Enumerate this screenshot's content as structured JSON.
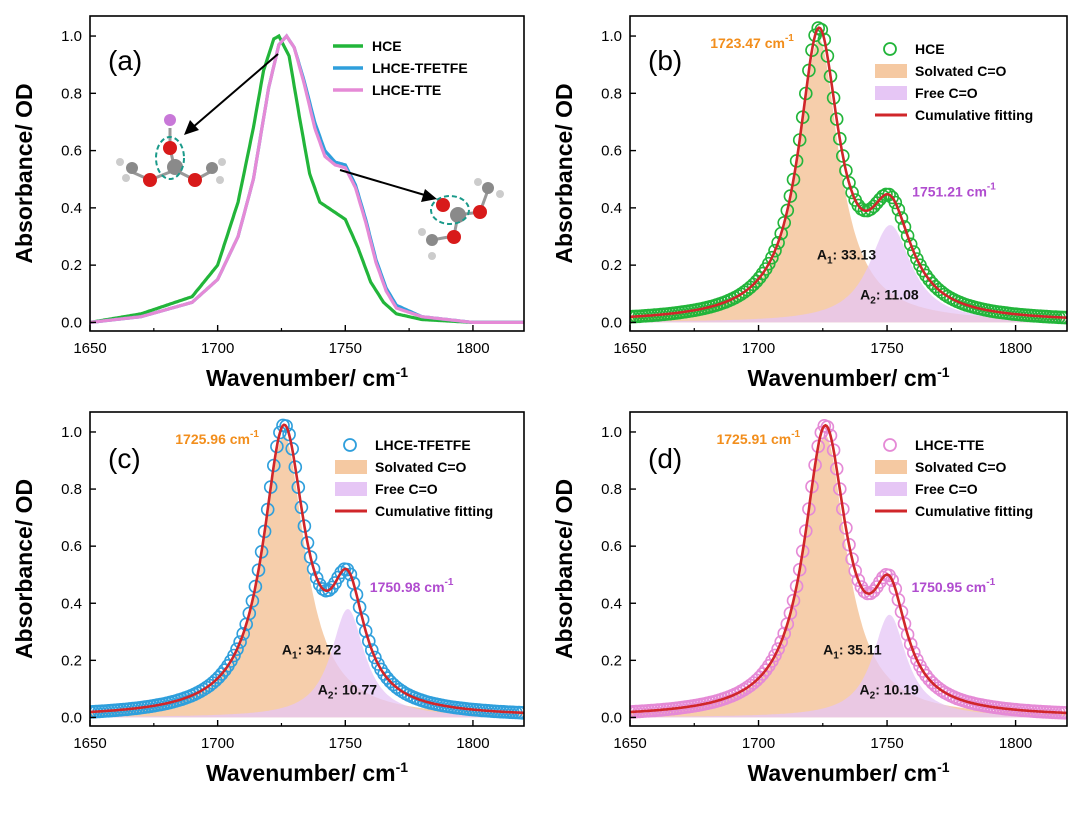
{
  "figure": {
    "colors": {
      "HCE": "#22b53a",
      "LHCE-TFETFE": "#2f9fdc",
      "LHCE-TTE": "#e58ad6",
      "solvated": "#f5c9a2",
      "free": "#e6c6f5",
      "fit": "#d0262a",
      "pos1": "#f28e1c",
      "pos2": "#b04ccf"
    }
  },
  "chart_data": [
    {
      "panel": "(a)",
      "type": "line",
      "xlabel": "Wavenumber/ cm",
      "xlabel_sup": "-1",
      "ylabel": "Absorbance/ OD",
      "xlim": [
        1650,
        1820
      ],
      "ylim": [
        -0.03,
        1.07
      ],
      "xticks": [
        1650,
        1700,
        1750,
        1800
      ],
      "yticks": [
        0.0,
        0.2,
        0.4,
        0.6,
        0.8,
        1.0
      ],
      "legend": [
        {
          "label": "HCE",
          "color": "#22b53a"
        },
        {
          "label": "LHCE-TFETFE",
          "color": "#2f9fdc"
        },
        {
          "label": "LHCE-TTE",
          "color": "#e58ad6"
        }
      ],
      "series": [
        {
          "name": "HCE",
          "color": "#22b53a",
          "x": [
            1650,
            1670,
            1690,
            1700,
            1708,
            1714,
            1718,
            1722,
            1724,
            1728,
            1732,
            1736,
            1740,
            1745,
            1750,
            1755,
            1760,
            1765,
            1770,
            1780,
            1800,
            1820
          ],
          "y": [
            0.0,
            0.03,
            0.09,
            0.2,
            0.42,
            0.68,
            0.88,
            0.99,
            1.0,
            0.93,
            0.72,
            0.52,
            0.42,
            0.39,
            0.36,
            0.26,
            0.14,
            0.07,
            0.03,
            0.01,
            0.0,
            0.0
          ]
        },
        {
          "name": "LHCE-TFETFE",
          "color": "#2f9fdc",
          "x": [
            1650,
            1670,
            1690,
            1700,
            1708,
            1714,
            1720,
            1724,
            1727,
            1730,
            1734,
            1738,
            1742,
            1746,
            1750,
            1754,
            1758,
            1762,
            1766,
            1770,
            1780,
            1800,
            1820
          ],
          "y": [
            0.0,
            0.02,
            0.07,
            0.15,
            0.3,
            0.5,
            0.82,
            0.97,
            1.0,
            0.96,
            0.84,
            0.7,
            0.6,
            0.56,
            0.55,
            0.48,
            0.36,
            0.22,
            0.12,
            0.06,
            0.02,
            0.0,
            0.0
          ]
        },
        {
          "name": "LHCE-TTE",
          "color": "#e58ad6",
          "x": [
            1650,
            1670,
            1690,
            1700,
            1708,
            1714,
            1720,
            1724,
            1727,
            1730,
            1734,
            1738,
            1742,
            1746,
            1750,
            1754,
            1758,
            1762,
            1766,
            1770,
            1780,
            1800,
            1820
          ],
          "y": [
            0.0,
            0.02,
            0.07,
            0.15,
            0.3,
            0.5,
            0.82,
            0.97,
            1.0,
            0.96,
            0.83,
            0.68,
            0.58,
            0.55,
            0.54,
            0.47,
            0.35,
            0.21,
            0.11,
            0.05,
            0.02,
            0.0,
            0.0
          ]
        }
      ]
    },
    {
      "panel": "(b)",
      "type": "line",
      "xlabel": "Wavenumber/ cm",
      "xlabel_sup": "-1",
      "ylabel": "Absorbance/ OD",
      "xlim": [
        1650,
        1820
      ],
      "ylim": [
        -0.03,
        1.07
      ],
      "xticks": [
        1650,
        1700,
        1750,
        1800
      ],
      "yticks": [
        0.0,
        0.2,
        0.4,
        0.6,
        0.8,
        1.0
      ],
      "data_color": "#22b53a",
      "legend": [
        {
          "label": "HCE",
          "kind": "marker",
          "color": "#22b53a"
        },
        {
          "label": "Solvated C=O",
          "kind": "area",
          "color": "#f5c9a2"
        },
        {
          "label": "Free C=O",
          "kind": "area",
          "color": "#e6c6f5"
        },
        {
          "label": "Cumulative fitting",
          "kind": "line",
          "color": "#d0262a"
        }
      ],
      "components": [
        {
          "name": "Solvated C=O",
          "center": 1723.47,
          "height": 0.99,
          "width": 9.5
        },
        {
          "name": "Free C=O",
          "center": 1751.21,
          "height": 0.34,
          "width": 10
        }
      ],
      "annotations": {
        "peak1_label": "1723.47 cm",
        "peak2_label": "1751.21 cm",
        "sup": "-1",
        "area1_prefix": "A",
        "area1_sub": "1",
        "area1_value": ": 33.13",
        "area2_prefix": "A",
        "area2_sub": "2",
        "area2_value": ": 11.08"
      }
    },
    {
      "panel": "(c)",
      "type": "line",
      "xlabel": "Wavenumber/ cm",
      "xlabel_sup": "-1",
      "ylabel": "Absorbance/ OD",
      "xlim": [
        1650,
        1820
      ],
      "ylim": [
        -0.03,
        1.07
      ],
      "xticks": [
        1650,
        1700,
        1750,
        1800
      ],
      "yticks": [
        0.0,
        0.2,
        0.4,
        0.6,
        0.8,
        1.0
      ],
      "data_color": "#2f9fdc",
      "legend": [
        {
          "label": "LHCE-TFETFE",
          "kind": "marker",
          "color": "#2f9fdc"
        },
        {
          "label": "Solvated C=O",
          "kind": "area",
          "color": "#f5c9a2"
        },
        {
          "label": "Free C=O",
          "kind": "area",
          "color": "#e6c6f5"
        },
        {
          "label": "Cumulative fitting",
          "kind": "line",
          "color": "#d0262a"
        }
      ],
      "components": [
        {
          "name": "Solvated C=O",
          "center": 1725.96,
          "height": 0.99,
          "width": 10
        },
        {
          "name": "Free C=O",
          "center": 1750.98,
          "height": 0.38,
          "width": 8
        }
      ],
      "annotations": {
        "peak1_label": "1725.96 cm",
        "peak2_label": "1750.98 cm",
        "sup": "-1",
        "area1_prefix": "A",
        "area1_sub": "1",
        "area1_value": ": 34.72",
        "area2_prefix": "A",
        "area2_sub": "2",
        "area2_value": ": 10.77"
      }
    },
    {
      "panel": "(d)",
      "type": "line",
      "xlabel": "Wavenumber/ cm",
      "xlabel_sup": "-1",
      "ylabel": "Absorbance/ OD",
      "xlim": [
        1650,
        1820
      ],
      "ylim": [
        -0.03,
        1.07
      ],
      "xticks": [
        1650,
        1700,
        1750,
        1800
      ],
      "yticks": [
        0.0,
        0.2,
        0.4,
        0.6,
        0.8,
        1.0
      ],
      "data_color": "#e58ad6",
      "legend": [
        {
          "label": "LHCE-TTE",
          "kind": "marker",
          "color": "#e58ad6"
        },
        {
          "label": "Solvated C=O",
          "kind": "area",
          "color": "#f5c9a2"
        },
        {
          "label": "Free C=O",
          "kind": "area",
          "color": "#e6c6f5"
        },
        {
          "label": "Cumulative fitting",
          "kind": "line",
          "color": "#d0262a"
        }
      ],
      "components": [
        {
          "name": "Solvated C=O",
          "center": 1725.91,
          "height": 0.99,
          "width": 10
        },
        {
          "name": "Free C=O",
          "center": 1750.95,
          "height": 0.36,
          "width": 8
        }
      ],
      "annotations": {
        "peak1_label": "1725.91 cm",
        "peak2_label": "1750.95 cm",
        "sup": "-1",
        "area1_prefix": "A",
        "area1_sub": "1",
        "area1_value": ": 35.11",
        "area2_prefix": "A",
        "area2_sub": "2",
        "area2_value": ": 10.19"
      }
    }
  ]
}
